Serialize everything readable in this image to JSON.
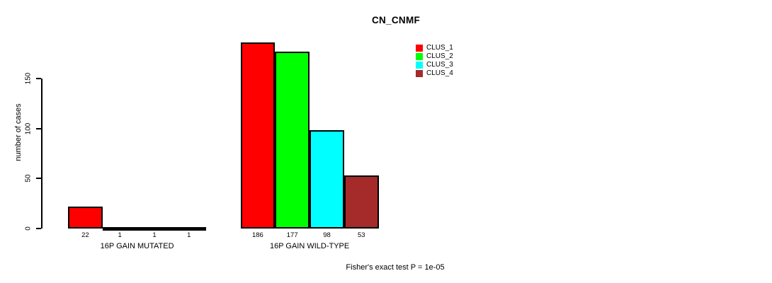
{
  "chart_data": {
    "type": "bar",
    "title": "CN_CNMF",
    "ylabel": "number of cases",
    "xlabel": "",
    "ylim": [
      0,
      150
    ],
    "yticks": [
      0,
      50,
      100,
      150
    ],
    "grid": false,
    "legend_position": "top-right",
    "categories": [
      "16P GAIN MUTATED",
      "16P GAIN WILD-TYPE"
    ],
    "series": [
      {
        "name": "CLUS_1",
        "color": "#ff0000",
        "values": [
          22,
          186
        ]
      },
      {
        "name": "CLUS_2",
        "color": "#00ff00",
        "values": [
          1,
          177
        ]
      },
      {
        "name": "CLUS_3",
        "color": "#00ffff",
        "values": [
          1,
          98
        ]
      },
      {
        "name": "CLUS_4",
        "color": "#a52a2a",
        "values": [
          1,
          53
        ]
      }
    ],
    "bar_value_labels_shown": true,
    "annotation": "Fisher's exact test P = 1e-05"
  }
}
